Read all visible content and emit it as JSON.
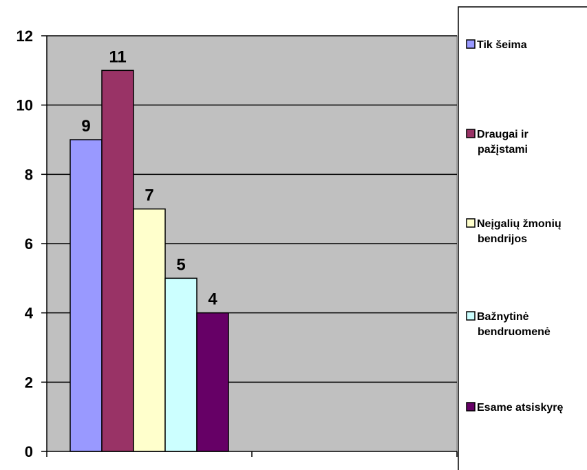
{
  "chart_data": {
    "type": "bar",
    "series": [
      {
        "name": "Tik šeima",
        "value": 9,
        "color": "#9999ff"
      },
      {
        "name": "Draugai ir pažįstami",
        "value": 11,
        "color": "#993366"
      },
      {
        "name": "Neįgalių žmonių bendrijos",
        "value": 7,
        "color": "#ffffcc"
      },
      {
        "name": "Bažnytinė bendruomenė",
        "value": 5,
        "color": "#ccffff"
      },
      {
        "name": "Esame atsiskyrę",
        "value": 4,
        "color": "#660066"
      }
    ],
    "legend": [
      [
        "Tik šeima"
      ],
      [
        "Draugai ir",
        "pažįstami"
      ],
      [
        "Neįgalių žmonių",
        "bendrijos"
      ],
      [
        "Bažnytinė",
        "bendruomenė"
      ],
      [
        "Esame atsiskyrę"
      ]
    ],
    "y_ticks": [
      "0",
      "2",
      "4",
      "6",
      "8",
      "10",
      "12"
    ],
    "ylim": [
      0,
      12
    ],
    "grid": true,
    "plot_background": "#c0c0c0",
    "legend_position": "right"
  }
}
